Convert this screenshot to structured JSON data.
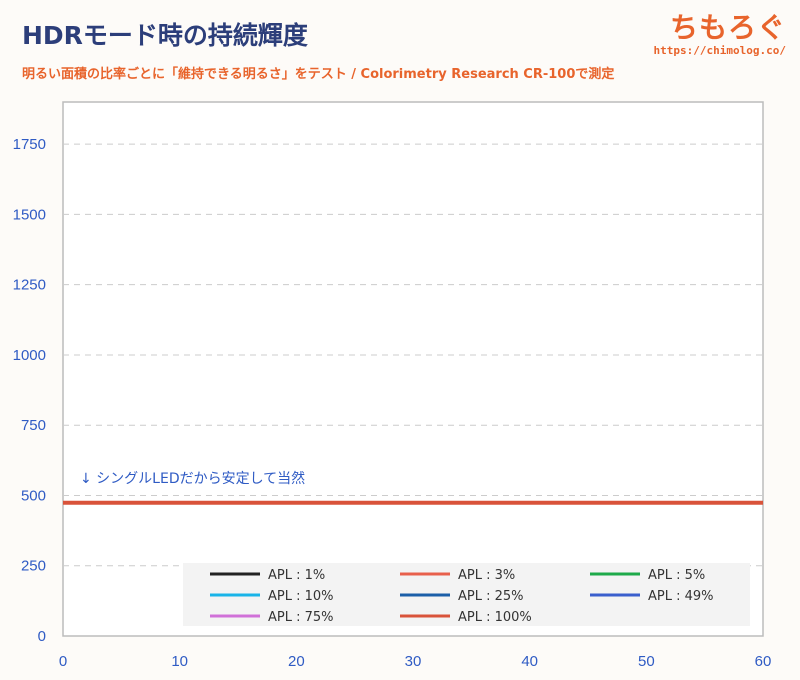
{
  "header": {
    "title": "HDRモード時の持続輝度",
    "subtitle": "明るい面積の比率ごとに「維持できる明るさ」をテスト / Colorimetry Research CR-100で測定",
    "brand_name": "ちもろぐ",
    "brand_url": "https://chimolog.co/"
  },
  "chart_data": {
    "type": "line",
    "title": "HDRモード時の持続輝度",
    "xlabel": "",
    "ylabel": "",
    "xlim": [
      0,
      60
    ],
    "ylim": [
      0,
      1900
    ],
    "x_ticks": [
      0,
      10,
      20,
      30,
      40,
      50,
      60
    ],
    "y_ticks": [
      0,
      250,
      500,
      750,
      1000,
      1250,
      1500,
      1750
    ],
    "grid": "horizontal dashed",
    "legend_position": "bottom",
    "annotation": "↓ シングルLEDだから安定して当然",
    "x": [
      0,
      60
    ],
    "series": [
      {
        "name": "APL : 1%",
        "color": "#222222",
        "values": [
          474,
          474
        ]
      },
      {
        "name": "APL : 3%",
        "color": "#e8604c",
        "values": [
          474,
          474
        ]
      },
      {
        "name": "APL : 5%",
        "color": "#1eaa4a",
        "values": [
          474,
          474
        ]
      },
      {
        "name": "APL : 10%",
        "color": "#19b4e8",
        "values": [
          474,
          474
        ]
      },
      {
        "name": "APL : 25%",
        "color": "#1c5fa8",
        "values": [
          474,
          474
        ]
      },
      {
        "name": "APL : 49%",
        "color": "#3a5fcd",
        "values": [
          474,
          474
        ]
      },
      {
        "name": "APL : 75%",
        "color": "#d070d8",
        "values": [
          474,
          474
        ]
      },
      {
        "name": "APL : 100%",
        "color": "#d9533a",
        "values": [
          474,
          474
        ]
      }
    ]
  }
}
